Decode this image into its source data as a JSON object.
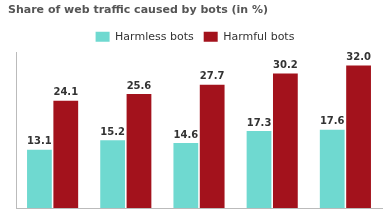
{
  "chart_data": {
    "type": "bar",
    "title": "Share of web traffic caused by bots (in %)",
    "categories": [
      null,
      null,
      null,
      null,
      null
    ],
    "series": [
      {
        "name": "Harmless bots",
        "color": "#6fd9d0",
        "values": [
          13.1,
          15.2,
          14.6,
          17.3,
          17.6
        ]
      },
      {
        "name": "Harmful bots",
        "color": "#a3121c",
        "values": [
          24.1,
          25.6,
          27.7,
          30.2,
          32.0
        ],
        "value_labels": [
          "24.1",
          "25.6",
          "27.7",
          "30.2",
          "32.0"
        ]
      }
    ],
    "ylim": [
      0,
      35
    ],
    "grid": false,
    "legend": "top",
    "data_labels": true,
    "tick_labels": false
  }
}
